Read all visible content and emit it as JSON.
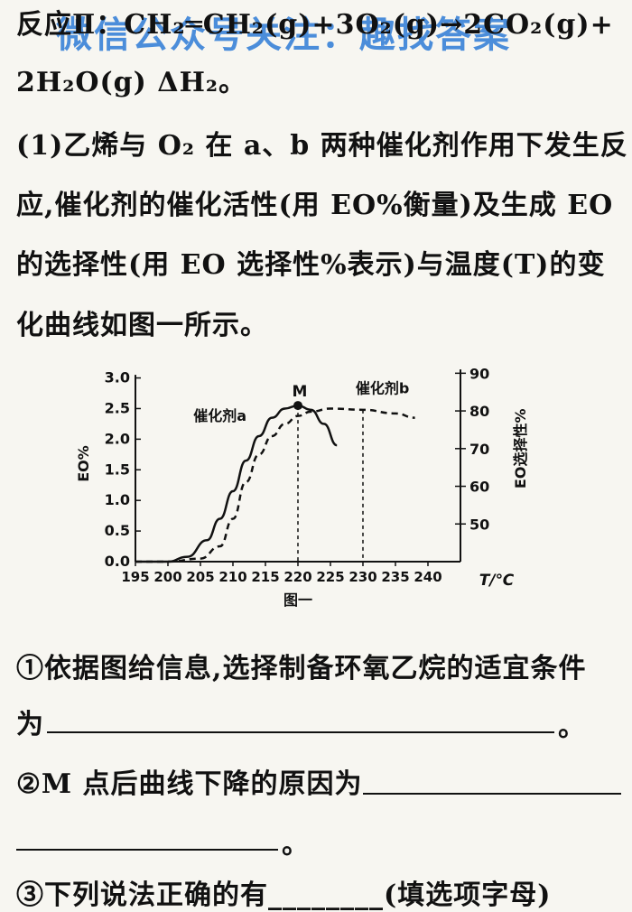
{
  "watermark": "微信公众号关注：趣找答案",
  "lines": [
    "反应Ⅱ：CH₂═CH₂(g)+3O₂(g)→2CO₂(g)+",
    "2H₂O(g)   ΔH₂。",
    "(1)乙烯与 O₂ 在 a、b 两种催化剂作用下发生反",
    "应,催化剂的催化活性(用 EO%衡量)及生成 EO",
    "的选择性(用 EO 选择性%表示)与温度(T)的变",
    "化曲线如图一所示。"
  ],
  "questions": {
    "q1_text": "①依据图给信息,选择制备环氧乙烷的适宜条件",
    "q1_prefix": "为",
    "q1_end": "。",
    "q2_text": "②M 点后曲线下降的原因为",
    "q2_end": "。",
    "q3_partial": "③下列说法正确的有________(填选项字母)"
  },
  "chart_data": {
    "type": "line",
    "caption": "图一",
    "xlabel": "T/℃",
    "ylabel_left": "EO%",
    "ylabel_right": "EO选择性%",
    "x_ticks": [
      195,
      200,
      205,
      210,
      215,
      220,
      225,
      230,
      235,
      240
    ],
    "y_left_ticks": [
      "0.0",
      "0.5",
      "1.0",
      "1.5",
      "2.0",
      "2.5",
      "3.0"
    ],
    "y_right_ticks": [
      "50",
      "60",
      "70",
      "80",
      "90"
    ],
    "xlim": [
      195,
      245
    ],
    "ylim_left": [
      0,
      3.2
    ],
    "ylim_right": [
      40,
      92
    ],
    "point_label": "M",
    "point": [
      220,
      2.55
    ],
    "reference_x": [
      220,
      230
    ],
    "series": [
      {
        "name": "催化剂a",
        "style": "solid",
        "axis": "left",
        "x": [
          195,
          200,
          203,
          206,
          208,
          210,
          212,
          214,
          216,
          218,
          220,
          222,
          224,
          226
        ],
        "y": [
          0.0,
          0.0,
          0.08,
          0.35,
          0.7,
          1.15,
          1.65,
          2.05,
          2.35,
          2.5,
          2.55,
          2.48,
          2.25,
          1.9
        ]
      },
      {
        "name": "催化剂b",
        "style": "dashed",
        "axis": "left",
        "x": [
          195,
          200,
          205,
          208,
          210,
          212,
          214,
          216,
          218,
          220,
          222,
          225,
          230,
          235,
          238
        ],
        "y": [
          0.0,
          0.0,
          0.05,
          0.25,
          0.7,
          1.3,
          1.75,
          2.05,
          2.25,
          2.38,
          2.45,
          2.5,
          2.48,
          2.42,
          2.35
        ]
      }
    ]
  }
}
